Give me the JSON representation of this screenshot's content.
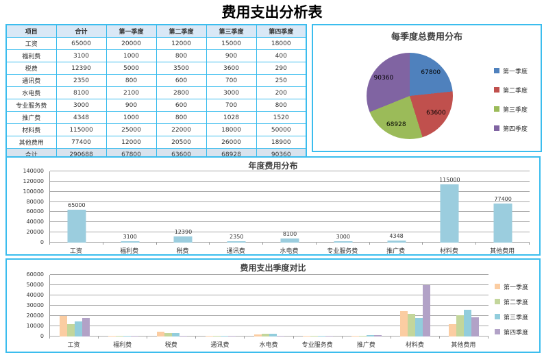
{
  "page_title": "费用支出分析表",
  "colors": {
    "panel_border": "#3bbdee",
    "table_header_fill": "#d9e8f6",
    "table_total_fill": "#d9e3ee",
    "gridline": "#a6a6a6"
  },
  "table": {
    "headers": [
      "项目",
      "合计",
      "第一季度",
      "第二季度",
      "第三季度",
      "第四季度"
    ],
    "rows": [
      [
        "工资",
        "65000",
        "20000",
        "12000",
        "15000",
        "18000"
      ],
      [
        "福利费",
        "3100",
        "1000",
        "800",
        "900",
        "400"
      ],
      [
        "税费",
        "12390",
        "5000",
        "3500",
        "3600",
        "290"
      ],
      [
        "通讯费",
        "2350",
        "800",
        "600",
        "700",
        "250"
      ],
      [
        "水电费",
        "8100",
        "2100",
        "2800",
        "3000",
        "200"
      ],
      [
        "专业服务费",
        "3000",
        "900",
        "600",
        "700",
        "800"
      ],
      [
        "推广费",
        "4348",
        "1000",
        "800",
        "1028",
        "1520"
      ],
      [
        "材料费",
        "115000",
        "25000",
        "22000",
        "18000",
        "50000"
      ],
      [
        "其他费用",
        "77400",
        "12000",
        "20500",
        "26000",
        "18900"
      ]
    ],
    "total_row": [
      "合计",
      "290688",
      "67800",
      "63600",
      "68928",
      "90360"
    ]
  },
  "chart_data": [
    {
      "type": "pie",
      "title": "每季度总费用分布",
      "labels": [
        "第一季度",
        "第二季度",
        "第三季度",
        "第四季度"
      ],
      "values": [
        67800,
        63600,
        68928,
        90360
      ],
      "colors": [
        "#4f81bd",
        "#c0504d",
        "#9bbb59",
        "#8064a2"
      ],
      "data_labels": [
        "67800",
        "63600",
        "68928",
        "90360"
      ],
      "legend_position": "right",
      "start_angle_deg": 0,
      "direction": "clockwise"
    },
    {
      "type": "bar",
      "title": "年度费用分布",
      "categories": [
        "工资",
        "福利费",
        "税费",
        "通讯费",
        "水电费",
        "专业服务费",
        "推广费",
        "材料费",
        "其他费用"
      ],
      "values": [
        65000,
        3100,
        12390,
        2350,
        8100,
        3000,
        4348,
        115000,
        77400
      ],
      "bar_color": "#9bcdde",
      "ylim": [
        0,
        140000
      ],
      "y_ticks": [
        "0",
        "20000",
        "40000",
        "60000",
        "80000",
        "100000",
        "120000",
        "140000"
      ],
      "xlabel": "",
      "ylabel": "",
      "grid": true,
      "data_labels": true,
      "legend_position": "none"
    },
    {
      "type": "bar",
      "title": "费用支出季度对比",
      "categories": [
        "工资",
        "福利费",
        "税费",
        "通讯费",
        "水电费",
        "专业服务费",
        "推广费",
        "材料费",
        "其他费用"
      ],
      "series": [
        {
          "name": "第一季度",
          "color": "#fbcda2",
          "values": [
            20000,
            1000,
            5000,
            800,
            2100,
            900,
            1000,
            25000,
            12000
          ]
        },
        {
          "name": "第二季度",
          "color": "#c3d69b",
          "values": [
            12000,
            800,
            3500,
            600,
            2800,
            600,
            800,
            22000,
            20500
          ]
        },
        {
          "name": "第三季度",
          "color": "#92cddc",
          "values": [
            15000,
            900,
            3600,
            700,
            3000,
            700,
            1028,
            18000,
            26000
          ]
        },
        {
          "name": "第四季度",
          "color": "#b2a2c7",
          "values": [
            18000,
            400,
            290,
            250,
            200,
            800,
            1520,
            50000,
            18900
          ]
        }
      ],
      "ylim": [
        0,
        60000
      ],
      "y_ticks": [
        "0",
        "10000",
        "20000",
        "30000",
        "40000",
        "50000",
        "60000"
      ],
      "xlabel": "",
      "ylabel": "",
      "grid": true,
      "data_labels": false,
      "legend_position": "right"
    }
  ]
}
